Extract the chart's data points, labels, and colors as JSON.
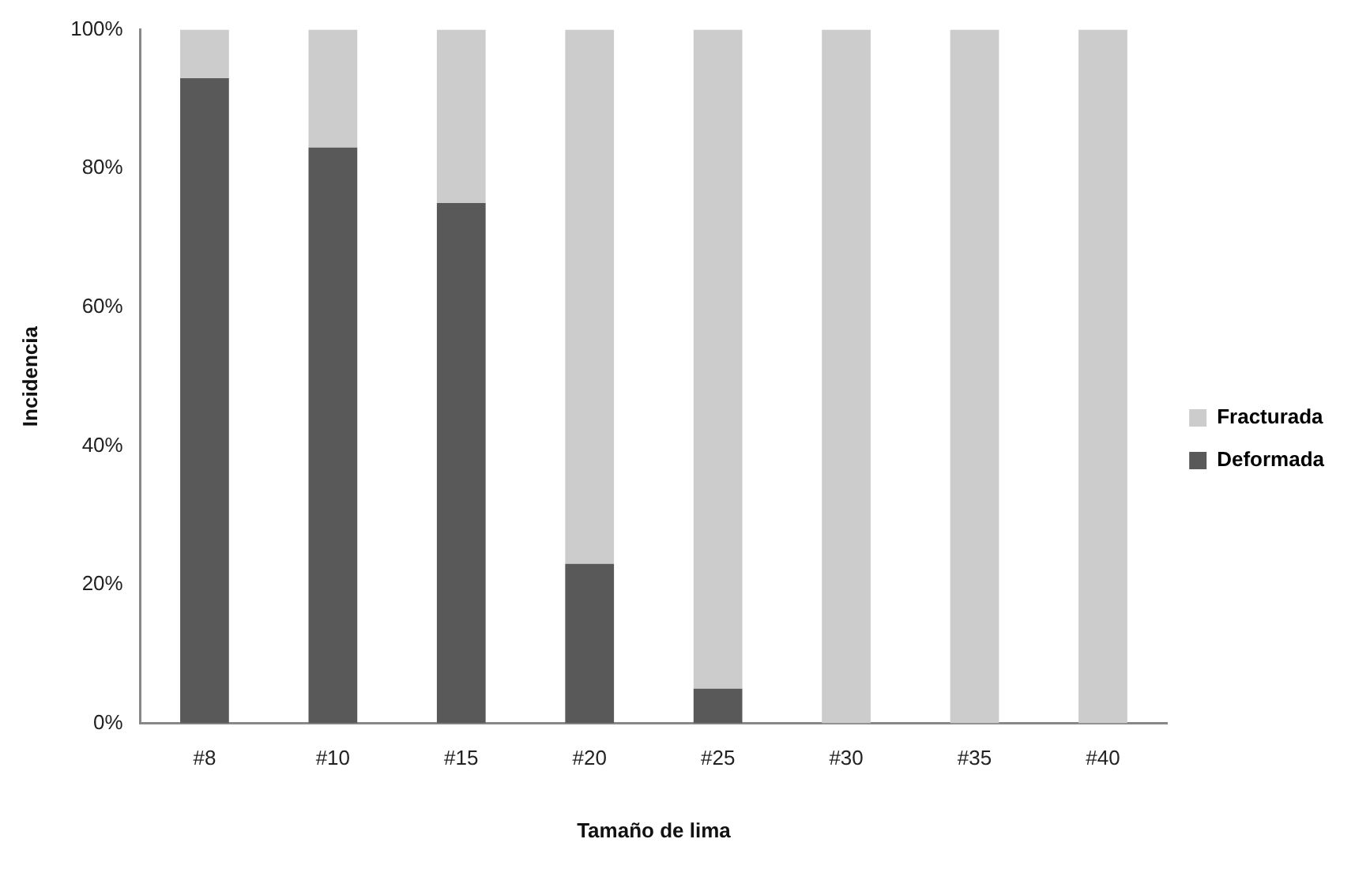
{
  "chart_data": {
    "type": "bar",
    "xlabel": "Tamaño de lima",
    "ylabel": "Incidencia",
    "categories": [
      "#8",
      "#10",
      "#15",
      "#20",
      "#25",
      "#30",
      "#35",
      "#40"
    ],
    "stacked": true,
    "series": [
      {
        "name": "Deformada",
        "color": "#595959",
        "values": [
          93,
          83,
          75,
          23,
          5,
          0,
          0,
          0
        ]
      },
      {
        "name": "Fracturada",
        "color": "#cccccc",
        "values": [
          7,
          17,
          25,
          77,
          95,
          100,
          100,
          100
        ]
      }
    ],
    "ylim": [
      0,
      100
    ],
    "yticks": [
      {
        "value": 0,
        "label": "0%"
      },
      {
        "value": 20,
        "label": "20%"
      },
      {
        "value": 40,
        "label": "40%"
      },
      {
        "value": 60,
        "label": "60%"
      },
      {
        "value": 80,
        "label": "80%"
      },
      {
        "value": 100,
        "label": "100%"
      }
    ],
    "grid": false,
    "legend": "right"
  }
}
